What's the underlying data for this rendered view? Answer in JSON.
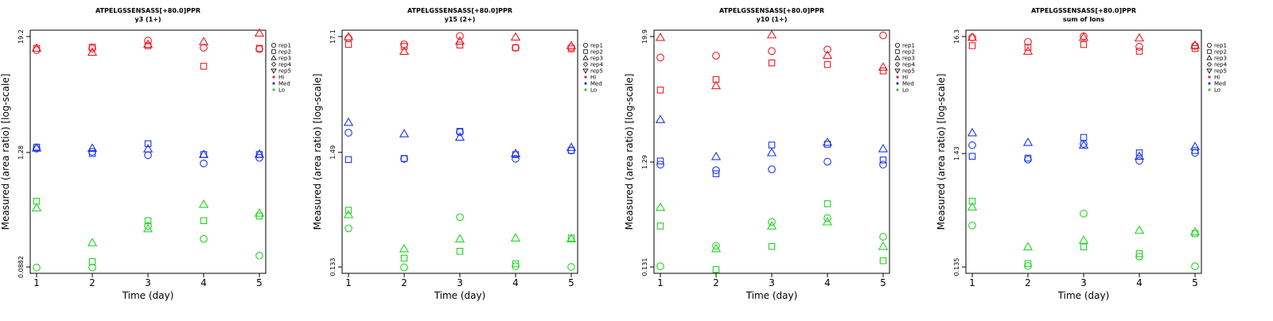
{
  "chart_data": [
    {
      "type": "scatter",
      "title": "ATPELGSSENSASS[+80.0]PPR",
      "subtitle": "y3 (1+)",
      "xlabel": "Time (day)",
      "ylabel": "Measured (area ratio) [log-scale]",
      "y_scale": "log",
      "y_ticks": [
        "0.0882",
        "1.28",
        "19.2"
      ],
      "x_ticks": [
        "1",
        "2",
        "3",
        "4",
        "5"
      ],
      "xlim": [
        1,
        5
      ],
      "ylim": [
        0.0882,
        19.2
      ],
      "series": [
        {
          "name": "rep1",
          "level": "Hi",
          "x": [
            1,
            2,
            3,
            4,
            5
          ],
          "y": [
            14.0,
            14.5,
            17.5,
            14.8,
            14.3
          ]
        },
        {
          "name": "rep2",
          "level": "Hi",
          "x": [
            1,
            2,
            3,
            4,
            5
          ],
          "y": [
            14.6,
            15.0,
            15.5,
            9.6,
            14.6
          ]
        },
        {
          "name": "rep3",
          "level": "Hi",
          "x": [
            1,
            2,
            3,
            4,
            5
          ],
          "y": [
            14.6,
            13.3,
            16.0,
            17.0,
            20.8
          ]
        },
        {
          "name": "rep1",
          "level": "Med",
          "x": [
            1,
            2,
            3,
            4,
            5
          ],
          "y": [
            1.4,
            1.3,
            1.2,
            0.99,
            1.13
          ]
        },
        {
          "name": "rep2",
          "level": "Med",
          "x": [
            1,
            2,
            3,
            4,
            5
          ],
          "y": [
            1.45,
            1.25,
            1.57,
            1.22,
            1.22
          ]
        },
        {
          "name": "rep3",
          "level": "Med",
          "x": [
            1,
            2,
            3,
            4,
            5
          ],
          "y": [
            1.42,
            1.41,
            1.39,
            1.22,
            1.23
          ]
        },
        {
          "name": "rep1",
          "level": "Lo",
          "x": [
            1,
            2,
            3,
            4,
            5
          ],
          "y": [
            0.087,
            0.087,
            0.23,
            0.17,
            0.115
          ]
        },
        {
          "name": "rep2",
          "level": "Lo",
          "x": [
            1,
            2,
            3,
            4,
            5
          ],
          "y": [
            0.41,
            0.1,
            0.26,
            0.26,
            0.29
          ]
        },
        {
          "name": "rep3",
          "level": "Lo",
          "x": [
            1,
            2,
            3,
            4,
            5
          ],
          "y": [
            0.35,
            0.155,
            0.215,
            0.38,
            0.31
          ]
        }
      ]
    },
    {
      "type": "scatter",
      "title": "ATPELGSSENSASS[+80.0]PPR",
      "subtitle": "y15 (2+)",
      "xlabel": "Time (day)",
      "ylabel": "Measured (area ratio) [log-scale]",
      "y_scale": "log",
      "y_ticks": [
        "0.133",
        "1.49",
        "17.1"
      ],
      "x_ticks": [
        "1",
        "2",
        "3",
        "4",
        "5"
      ],
      "xlim": [
        1,
        5
      ],
      "ylim": [
        0.133,
        17.1
      ],
      "series": [
        {
          "name": "rep1",
          "level": "Hi",
          "x": [
            1,
            2,
            3,
            4,
            5
          ],
          "y": [
            16.5,
            14.5,
            17.3,
            13.5,
            13.6
          ]
        },
        {
          "name": "rep2",
          "level": "Hi",
          "x": [
            1,
            2,
            3,
            4,
            5
          ],
          "y": [
            14.5,
            13.9,
            14.3,
            13.5,
            13.2
          ]
        },
        {
          "name": "rep3",
          "level": "Hi",
          "x": [
            1,
            2,
            3,
            4,
            5
          ],
          "y": [
            17.0,
            12.5,
            15.5,
            16.9,
            14.1
          ]
        },
        {
          "name": "rep1",
          "level": "Med",
          "x": [
            1,
            2,
            3,
            4,
            5
          ],
          "y": [
            2.25,
            1.3,
            2.28,
            1.3,
            1.55
          ]
        },
        {
          "name": "rep2",
          "level": "Med",
          "x": [
            1,
            2,
            3,
            4,
            5
          ],
          "y": [
            1.28,
            1.31,
            2.32,
            1.42,
            1.55
          ]
        },
        {
          "name": "rep3",
          "level": "Med",
          "x": [
            1,
            2,
            3,
            4,
            5
          ],
          "y": [
            2.8,
            2.2,
            2.05,
            1.45,
            1.65
          ]
        },
        {
          "name": "rep1",
          "level": "Lo",
          "x": [
            1,
            2,
            3,
            4,
            5
          ],
          "y": [
            0.3,
            0.132,
            0.38,
            0.135,
            0.133
          ]
        },
        {
          "name": "rep2",
          "level": "Lo",
          "x": [
            1,
            2,
            3,
            4,
            5
          ],
          "y": [
            0.44,
            0.16,
            0.185,
            0.142,
            0.245
          ]
        },
        {
          "name": "rep3",
          "level": "Lo",
          "x": [
            1,
            2,
            3,
            4,
            5
          ],
          "y": [
            0.4,
            0.195,
            0.24,
            0.245,
            0.24
          ]
        }
      ]
    },
    {
      "type": "scatter",
      "title": "ATPELGSSENSASS[+80.0]PPR",
      "subtitle": "y10 (1+)",
      "xlabel": "Time (day)",
      "ylabel": "Measured (area ratio) [log-scale]",
      "y_scale": "log",
      "y_ticks": [
        "0.131",
        "1.29",
        "19.9"
      ],
      "x_ticks": [
        "1",
        "2",
        "3",
        "4",
        "5"
      ],
      "xlim": [
        1,
        5
      ],
      "ylim": [
        0.131,
        19.9
      ],
      "series": [
        {
          "name": "rep1",
          "level": "Hi",
          "x": [
            1,
            2,
            3,
            4,
            5
          ],
          "y": [
            12.6,
            13.1,
            14.5,
            15.0,
            20.4
          ]
        },
        {
          "name": "rep2",
          "level": "Hi",
          "x": [
            1,
            2,
            3,
            4,
            5
          ],
          "y": [
            6.2,
            7.8,
            11.2,
            10.8,
            9.4
          ]
        },
        {
          "name": "rep3",
          "level": "Hi",
          "x": [
            1,
            2,
            3,
            4,
            5
          ],
          "y": [
            19.5,
            6.8,
            20.6,
            13.2,
            10.2
          ]
        },
        {
          "name": "rep1",
          "level": "Med",
          "x": [
            1,
            2,
            3,
            4,
            5
          ],
          "y": [
            1.22,
            1.08,
            1.1,
            1.3,
            1.22
          ]
        },
        {
          "name": "rep2",
          "level": "Med",
          "x": [
            1,
            2,
            3,
            4,
            5
          ],
          "y": [
            1.32,
            1.0,
            1.87,
            1.9,
            1.35
          ]
        },
        {
          "name": "rep3",
          "level": "Med",
          "x": [
            1,
            2,
            3,
            4,
            5
          ],
          "y": [
            3.25,
            1.45,
            1.58,
            1.98,
            1.72
          ]
        },
        {
          "name": "rep1",
          "level": "Lo",
          "x": [
            1,
            2,
            3,
            4,
            5
          ],
          "y": [
            0.133,
            0.208,
            0.35,
            0.38,
            0.253
          ]
        },
        {
          "name": "rep2",
          "level": "Lo",
          "x": [
            1,
            2,
            3,
            4,
            5
          ],
          "y": [
            0.32,
            0.124,
            0.205,
            0.52,
            0.15
          ]
        },
        {
          "name": "rep3",
          "level": "Lo",
          "x": [
            1,
            2,
            3,
            4,
            5
          ],
          "y": [
            0.48,
            0.195,
            0.32,
            0.35,
            0.205
          ]
        }
      ]
    },
    {
      "type": "scatter",
      "title": "ATPELGSSENSASS[+80.0]PPR",
      "subtitle": "sum of Ions",
      "xlabel": "Time (day)",
      "ylabel": "Measured (area ratio) [log-scale]",
      "y_scale": "log",
      "y_ticks": [
        "0.135",
        "1.43",
        "16.3"
      ],
      "x_ticks": [
        "1",
        "2",
        "3",
        "4",
        "5"
      ],
      "xlim": [
        1,
        5
      ],
      "ylim": [
        0.135,
        16.3
      ],
      "series": [
        {
          "name": "rep1",
          "level": "Hi",
          "x": [
            1,
            2,
            3,
            4,
            5
          ],
          "y": [
            16.0,
            14.6,
            16.4,
            13.2,
            13.4
          ]
        },
        {
          "name": "rep2",
          "level": "Hi",
          "x": [
            1,
            2,
            3,
            4,
            5
          ],
          "y": [
            13.5,
            13.0,
            13.8,
            12.0,
            12.7
          ]
        },
        {
          "name": "rep3",
          "level": "Hi",
          "x": [
            1,
            2,
            3,
            4,
            5
          ],
          "y": [
            16.0,
            12.0,
            16.0,
            15.8,
            13.6
          ]
        },
        {
          "name": "rep1",
          "level": "Med",
          "x": [
            1,
            2,
            3,
            4,
            5
          ],
          "y": [
            1.7,
            1.26,
            1.75,
            1.23,
            1.45
          ]
        },
        {
          "name": "rep2",
          "level": "Med",
          "x": [
            1,
            2,
            3,
            4,
            5
          ],
          "y": [
            1.35,
            1.3,
            2.0,
            1.45,
            1.52
          ]
        },
        {
          "name": "rep3",
          "level": "Med",
          "x": [
            1,
            2,
            3,
            4,
            5
          ],
          "y": [
            2.2,
            1.8,
            1.7,
            1.35,
            1.65
          ]
        },
        {
          "name": "rep1",
          "level": "Lo",
          "x": [
            1,
            2,
            3,
            4,
            5
          ],
          "y": [
            0.32,
            0.138,
            0.41,
            0.168,
            0.137
          ]
        },
        {
          "name": "rep2",
          "level": "Lo",
          "x": [
            1,
            2,
            3,
            4,
            5
          ],
          "y": [
            0.53,
            0.145,
            0.205,
            0.178,
            0.27
          ]
        },
        {
          "name": "rep3",
          "level": "Lo",
          "x": [
            1,
            2,
            3,
            4,
            5
          ],
          "y": [
            0.47,
            0.205,
            0.235,
            0.29,
            0.28
          ]
        }
      ]
    }
  ],
  "legend": {
    "placement": "right",
    "entries": [
      {
        "label": "rep1",
        "shape": "circle",
        "filled": false
      },
      {
        "label": "rep2",
        "shape": "square",
        "filled": false
      },
      {
        "label": "rep3",
        "shape": "triangle-up",
        "filled": false
      },
      {
        "label": "rep4",
        "shape": "diamond",
        "filled": false
      },
      {
        "label": "rep5",
        "shape": "triangle-down",
        "filled": false
      },
      {
        "label": "Hi",
        "shape": "dot",
        "filled": true,
        "color": "#ee1c24"
      },
      {
        "label": "Med",
        "shape": "dot",
        "filled": true,
        "color": "#1c37ee"
      },
      {
        "label": "Lo",
        "shape": "dot",
        "filled": true,
        "color": "#22d322"
      }
    ]
  },
  "colors": {
    "Hi": "#ee1c24",
    "Med": "#1c37ee",
    "Lo": "#22d322"
  },
  "grid": false
}
